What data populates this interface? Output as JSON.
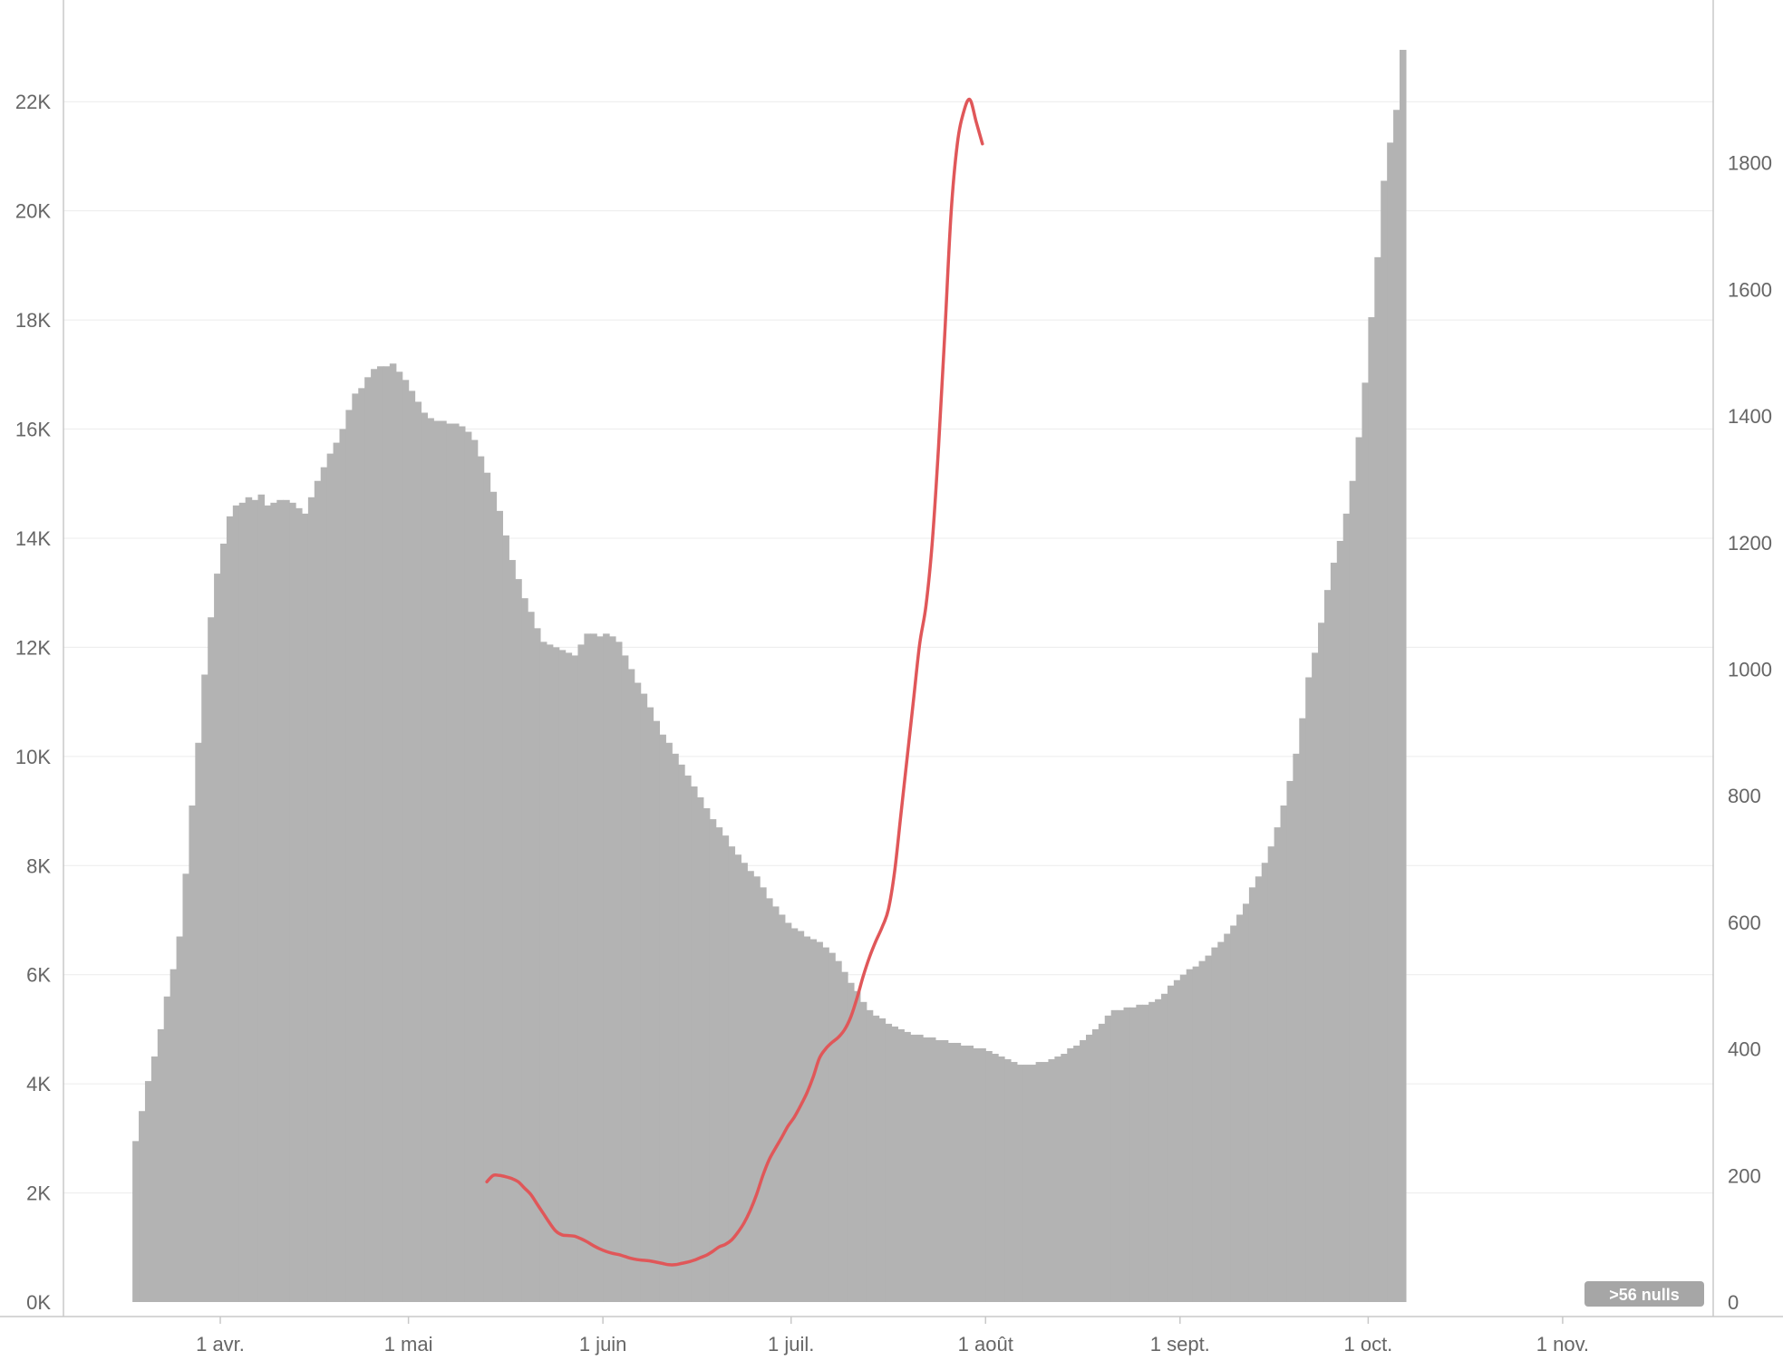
{
  "chart_data": {
    "type": "bar",
    "series": [
      {
        "axis": "left",
        "type": "bar",
        "color": "#b3b3b3",
        "start_date": "2020-03-18",
        "values": [
          2950,
          3500,
          4050,
          4500,
          5000,
          5600,
          6100,
          6700,
          7850,
          9100,
          10250,
          11500,
          12550,
          13350,
          13900,
          14400,
          14600,
          14650,
          14750,
          14700,
          14800,
          14600,
          14650,
          14700,
          14700,
          14650,
          14550,
          14450,
          14750,
          15050,
          15300,
          15550,
          15750,
          16000,
          16350,
          16650,
          16750,
          16950,
          17100,
          17150,
          17150,
          17200,
          17050,
          16900,
          16700,
          16500,
          16300,
          16200,
          16150,
          16150,
          16100,
          16100,
          16050,
          15950,
          15800,
          15500,
          15200,
          14850,
          14500,
          14050,
          13600,
          13250,
          12900,
          12650,
          12350,
          12100,
          12050,
          12000,
          11950,
          11900,
          11850,
          12050,
          12250,
          12250,
          12200,
          12250,
          12200,
          12100,
          11850,
          11600,
          11350,
          11150,
          10900,
          10650,
          10400,
          10250,
          10050,
          9850,
          9650,
          9450,
          9250,
          9050,
          8850,
          8700,
          8550,
          8350,
          8200,
          8050,
          7900,
          7800,
          7600,
          7400,
          7250,
          7100,
          6950,
          6850,
          6800,
          6700,
          6650,
          6600,
          6500,
          6400,
          6250,
          6050,
          5850,
          5700,
          5500,
          5350,
          5250,
          5200,
          5100,
          5050,
          5000,
          4950,
          4900,
          4900,
          4850,
          4850,
          4800,
          4800,
          4750,
          4750,
          4700,
          4700,
          4650,
          4650,
          4600,
          4550,
          4500,
          4450,
          4400,
          4350,
          4350,
          4350,
          4400,
          4400,
          4450,
          4500,
          4550,
          4650,
          4700,
          4800,
          4900,
          5000,
          5100,
          5250,
          5350,
          5350,
          5400,
          5400,
          5450,
          5450,
          5500,
          5550,
          5650,
          5800,
          5900,
          6000,
          6100,
          6150,
          6250,
          6350,
          6500,
          6600,
          6750,
          6900,
          7100,
          7300,
          7600,
          7800,
          8050,
          8350,
          8700,
          9100,
          9550,
          10050,
          10700,
          11450,
          11900,
          12450,
          13050,
          13550,
          13950,
          14450,
          15050,
          15850,
          16850,
          18050,
          19150,
          20550,
          21250,
          21850,
          22950
        ]
      },
      {
        "axis": "right",
        "type": "line",
        "color": "#e05759",
        "start_date": "2020-05-13",
        "values": [
          190,
          200,
          200,
          198,
          195,
          190,
          180,
          170,
          155,
          140,
          125,
          112,
          106,
          105,
          104,
          100,
          95,
          89,
          84,
          80,
          77,
          75,
          72,
          69,
          67,
          66,
          65,
          63,
          61,
          59,
          59,
          61,
          63,
          66,
          70,
          74,
          80,
          87,
          91,
          98,
          110,
          125,
          145,
          170,
          200,
          225,
          243,
          260,
          278,
          292,
          310,
          330,
          355,
          385,
          400,
          410,
          418,
          430,
          450,
          480,
          515,
          545,
          570,
          592,
          620,
          680,
          770,
          860,
          950,
          1040,
          1100,
          1200,
          1350,
          1530,
          1720,
          1830,
          1880,
          1900,
          1865,
          1830
        ],
        "nulls_label": ">56 nulls"
      }
    ],
    "y_left": {
      "min": 0,
      "max": 23000,
      "ticks": [
        0,
        2000,
        4000,
        6000,
        8000,
        10000,
        12000,
        14000,
        16000,
        18000,
        20000,
        22000
      ],
      "tick_labels": [
        "0K",
        "2K",
        "4K",
        "6K",
        "8K",
        "10K",
        "12K",
        "14K",
        "16K",
        "18K",
        "20K",
        "22K"
      ]
    },
    "y_right": {
      "min": 0,
      "max": 2000,
      "ticks": [
        0,
        200,
        400,
        600,
        800,
        1000,
        1200,
        1400,
        1600,
        1800
      ],
      "tick_labels": [
        "0",
        "200",
        "400",
        "600",
        "800",
        "1000",
        "1200",
        "1400",
        "1600",
        "1800"
      ]
    },
    "x": {
      "start": "2020-03-07",
      "end": "2020-11-25",
      "ticks": [
        "2020-04-01",
        "2020-05-01",
        "2020-06-01",
        "2020-07-01",
        "2020-08-01",
        "2020-09-01",
        "2020-10-01",
        "2020-11-01"
      ],
      "tick_labels": [
        "1 avr.",
        "1 mai",
        "1 juin",
        "1 juil.",
        "1 août",
        "1 sept.",
        "1 oct.",
        "1 nov."
      ]
    },
    "grid": true,
    "title": "",
    "xlabel": "",
    "ylabel_left": "",
    "ylabel_right": ""
  }
}
